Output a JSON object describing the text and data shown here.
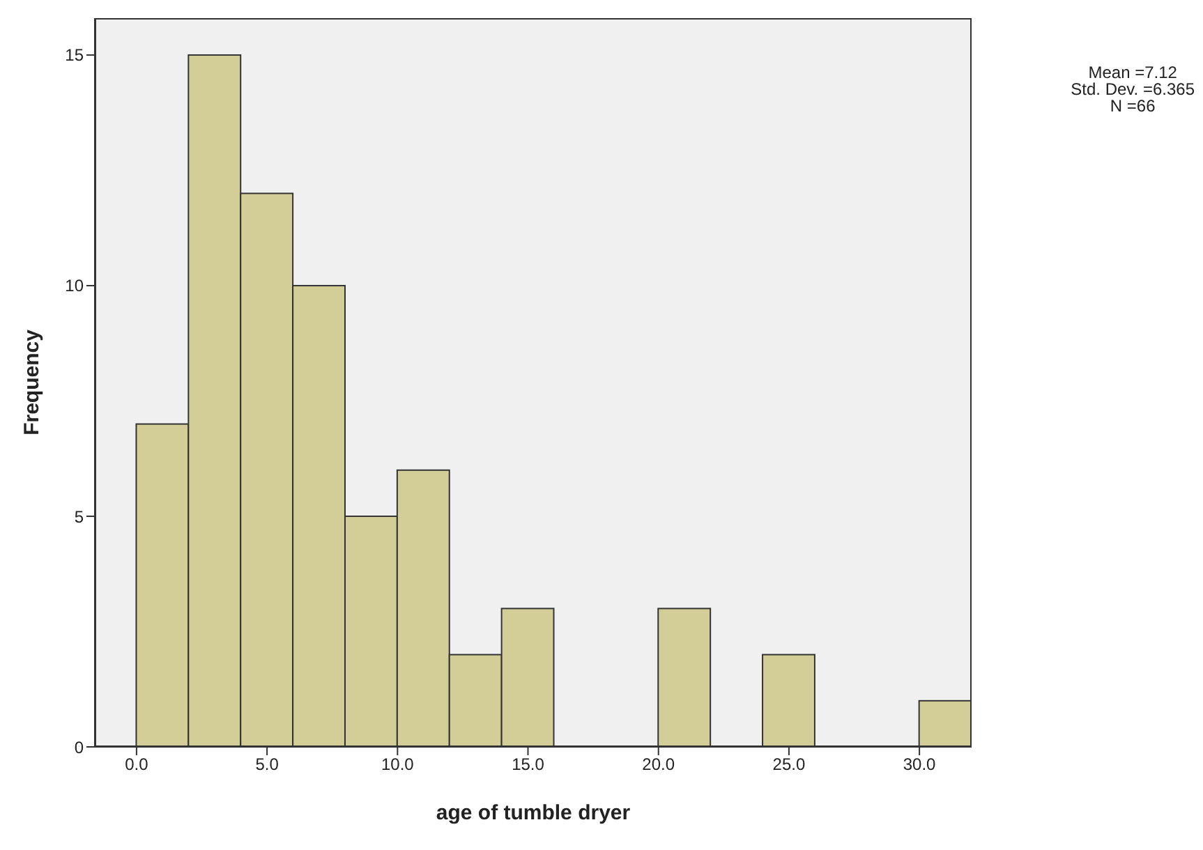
{
  "chart_data": {
    "type": "histogram",
    "xlabel": "age of tumble dryer",
    "ylabel": "Frequency",
    "bins": [
      0,
      2,
      4,
      6,
      8,
      10,
      12,
      14,
      16,
      18,
      20,
      22,
      24,
      26,
      28,
      30,
      32
    ],
    "values": [
      7,
      15,
      12,
      10,
      5,
      6,
      2,
      3,
      0,
      0,
      3,
      0,
      2,
      0,
      0,
      1
    ],
    "color": "#d3ce98",
    "xlim": [
      -1.6,
      32
    ],
    "xticks": [
      {
        "value": 0,
        "label": "0.0"
      },
      {
        "value": 5,
        "label": "5.0"
      },
      {
        "value": 10,
        "label": "10.0"
      },
      {
        "value": 15,
        "label": "15.0"
      },
      {
        "value": 20,
        "label": "20.0"
      },
      {
        "value": 25,
        "label": "25.0"
      },
      {
        "value": 30,
        "label": "30.0"
      }
    ],
    "ylim": [
      0,
      15.8
    ],
    "yticks": [
      0,
      5,
      10,
      15
    ],
    "annotations": [
      "Mean =7.12",
      "Std. Dev. =6.365",
      "N =66"
    ]
  }
}
